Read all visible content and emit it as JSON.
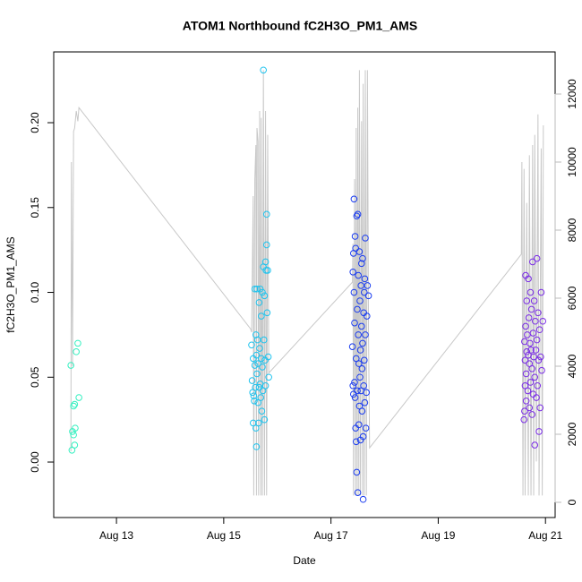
{
  "chart_data": {
    "type": "scatter",
    "title": "ATOM1 Northbound fC2H3O_PM1_AMS",
    "xlabel": "Date",
    "ylabel": "fC2H3O_PM1_AMS",
    "xlim": [
      11.83,
      21.18
    ],
    "xticks": [
      {
        "value": 13,
        "label": "Aug 13"
      },
      {
        "value": 15,
        "label": "Aug 15"
      },
      {
        "value": 17,
        "label": "Aug 17"
      },
      {
        "value": 19,
        "label": "Aug 19"
      },
      {
        "value": 21,
        "label": "Aug 21"
      }
    ],
    "ylim": [
      -0.0327,
      0.2417
    ],
    "yticks": [
      {
        "value": 0,
        "label": "0.00"
      },
      {
        "value": 0.05,
        "label": "0.05"
      },
      {
        "value": 0.1,
        "label": "0.10"
      },
      {
        "value": 0.15,
        "label": "0.15"
      },
      {
        "value": 0.2,
        "label": "0.20"
      }
    ],
    "y2lim": [
      -447,
      13237
    ],
    "y2ticks": [
      0,
      2000,
      4000,
      6000,
      8000,
      10000,
      12000
    ],
    "y2color": "#bbbbbb",
    "series": [
      {
        "axis": "y2",
        "color": "#c8c8c8",
        "x": [
          12.15,
          12.16,
          12.18,
          12.2,
          12.22,
          12.25,
          12.28,
          12.3,
          15.5,
          15.52,
          15.55,
          15.56,
          15.58,
          15.6,
          15.61,
          15.62,
          15.64,
          15.65,
          15.67,
          15.69,
          15.7,
          15.72,
          15.74,
          15.76,
          15.78,
          15.8,
          15.82,
          15.84,
          17.4,
          17.41,
          17.42,
          17.44,
          17.46,
          17.47,
          17.49,
          17.5,
          17.52,
          17.53,
          17.55,
          17.57,
          17.59,
          17.6,
          17.62,
          17.64,
          17.66,
          17.68,
          17.7,
          17.72,
          20.55,
          20.56,
          20.58,
          20.6,
          20.62,
          20.65,
          20.68,
          20.7,
          20.73,
          20.76,
          20.78,
          20.8,
          20.83,
          20.86,
          20.88,
          20.92,
          20.94,
          20.96
        ],
        "values": [
          1500,
          10000,
          4000,
          10900,
          11000,
          11500,
          11200,
          11600,
          5100,
          5000,
          9000,
          200,
          9500,
          10500,
          200,
          11000,
          10600,
          200,
          11500,
          200,
          11300,
          200,
          12700,
          200,
          11500,
          200,
          10800,
          3800,
          6470,
          7600,
          200,
          9500,
          200,
          11000,
          200,
          11600,
          200,
          12700,
          200,
          11200,
          200,
          12300,
          200,
          12700,
          200,
          12700,
          5000,
          1600,
          7290,
          10000,
          200,
          9800,
          200,
          8800,
          200,
          10200,
          200,
          10500,
          200,
          10800,
          1200,
          11400,
          200,
          10400,
          200,
          11080
        ]
      },
      {
        "color": "#33f0c0",
        "x": [
          12.15,
          12.17,
          12.18,
          12.2,
          12.2,
          12.22,
          12.22,
          12.23,
          12.25,
          12.28,
          12.3
        ],
        "values": [
          0.057,
          0.007,
          0.018,
          0.016,
          0.033,
          0.034,
          0.01,
          0.02,
          0.065,
          0.07,
          0.038
        ]
      },
      {
        "color": "#1ec3ee",
        "x": [
          15.52,
          15.53,
          15.54,
          15.55,
          15.55,
          15.56,
          15.57,
          15.58,
          15.58,
          15.59,
          15.6,
          15.6,
          15.61,
          15.61,
          15.62,
          15.62,
          15.63,
          15.64,
          15.64,
          15.65,
          15.66,
          15.66,
          15.67,
          15.68,
          15.68,
          15.69,
          15.7,
          15.7,
          15.71,
          15.72,
          15.72,
          15.73,
          15.74,
          15.74,
          15.75,
          15.76,
          15.76,
          15.77,
          15.78,
          15.78,
          15.79,
          15.8,
          15.8,
          15.81,
          15.82,
          15.83,
          15.84
        ],
        "values": [
          0.069,
          0.048,
          0.041,
          0.061,
          0.023,
          0.039,
          0.036,
          0.057,
          0.102,
          0.044,
          0.075,
          0.02,
          0.009,
          0.063,
          0.052,
          0.102,
          0.072,
          0.035,
          0.058,
          0.023,
          0.044,
          0.094,
          0.067,
          0.046,
          0.102,
          0.038,
          0.061,
          0.086,
          0.03,
          0.1,
          0.056,
          0.042,
          0.231,
          0.115,
          0.072,
          0.025,
          0.098,
          0.06,
          0.118,
          0.045,
          0.113,
          0.146,
          0.128,
          0.088,
          0.113,
          0.062,
          0.05
        ]
      },
      {
        "color": "#1a3cf0",
        "x": [
          17.4,
          17.41,
          17.41,
          17.42,
          17.42,
          17.43,
          17.43,
          17.44,
          17.44,
          17.45,
          17.45,
          17.46,
          17.46,
          17.47,
          17.47,
          17.48,
          17.48,
          17.49,
          17.49,
          17.5,
          17.5,
          17.51,
          17.51,
          17.52,
          17.52,
          17.53,
          17.53,
          17.54,
          17.54,
          17.55,
          17.55,
          17.56,
          17.56,
          17.57,
          17.57,
          17.58,
          17.58,
          17.59,
          17.59,
          17.6,
          17.6,
          17.61,
          17.61,
          17.62,
          17.62,
          17.63,
          17.63,
          17.64,
          17.64,
          17.65,
          17.66,
          17.67,
          17.68,
          17.7
        ],
        "values": [
          0.068,
          0.112,
          0.045,
          0.123,
          0.04,
          0.155,
          0.1,
          0.082,
          0.047,
          0.133,
          0.038,
          0.126,
          0.02,
          0.012,
          0.061,
          -0.006,
          0.145,
          0.09,
          0.042,
          0.146,
          -0.018,
          0.11,
          0.075,
          0.022,
          0.058,
          0.124,
          0.033,
          0.05,
          0.095,
          0.013,
          0.066,
          0.104,
          0.042,
          0.117,
          0.08,
          0.03,
          0.055,
          0.12,
          0.07,
          -0.022,
          0.015,
          0.088,
          0.045,
          0.1,
          0.06,
          0.108,
          0.035,
          0.132,
          0.075,
          0.02,
          0.041,
          0.086,
          0.104,
          0.098
        ]
      },
      {
        "color": "#7a2ce6",
        "x": [
          20.6,
          20.61,
          20.61,
          20.62,
          20.62,
          20.63,
          20.63,
          20.64,
          20.64,
          20.65,
          20.65,
          20.66,
          20.67,
          20.68,
          20.68,
          20.69,
          20.7,
          20.7,
          20.71,
          20.72,
          20.72,
          20.73,
          20.74,
          20.75,
          20.75,
          20.76,
          20.77,
          20.77,
          20.78,
          20.79,
          20.8,
          20.8,
          20.81,
          20.82,
          20.83,
          20.84,
          20.84,
          20.85,
          20.86,
          20.87,
          20.88,
          20.89,
          20.9,
          20.91,
          20.92,
          20.93,
          20.95
        ],
        "values": [
          0.025,
          0.071,
          0.03,
          0.06,
          0.045,
          0.11,
          0.08,
          0.052,
          0.036,
          0.065,
          0.095,
          0.075,
          0.042,
          0.063,
          0.108,
          0.085,
          0.058,
          0.032,
          0.07,
          0.047,
          0.1,
          0.066,
          0.09,
          0.055,
          0.028,
          0.118,
          0.076,
          0.04,
          0.062,
          0.095,
          0.05,
          0.01,
          0.083,
          0.066,
          0.038,
          0.12,
          0.072,
          0.045,
          0.088,
          0.06,
          0.018,
          0.078,
          0.032,
          0.062,
          0.1,
          0.054,
          0.083
        ]
      }
    ]
  }
}
